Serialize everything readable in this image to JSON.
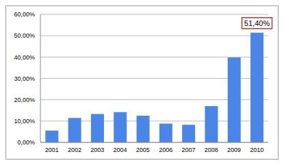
{
  "chart_data": {
    "type": "bar",
    "categories": [
      "2001",
      "2002",
      "2003",
      "2004",
      "2005",
      "2006",
      "2007",
      "2008",
      "2009",
      "2010"
    ],
    "values": [
      5.5,
      11.5,
      13.3,
      14.2,
      12.5,
      8.8,
      8.3,
      17.0,
      39.8,
      51.4
    ],
    "value_labels": [
      null,
      null,
      null,
      null,
      null,
      null,
      null,
      null,
      null,
      "51,40%"
    ],
    "data_labels": true,
    "color": "#4a86e8",
    "ylim": [
      0,
      60
    ],
    "yticks": [
      {
        "value": 0,
        "label": "0,00%"
      },
      {
        "value": 10,
        "label": "10,00%"
      },
      {
        "value": 20,
        "label": "20,00%"
      },
      {
        "value": 30,
        "label": "30,00%"
      },
      {
        "value": 40,
        "label": "40,00%"
      },
      {
        "value": 50,
        "label": "50,00%"
      },
      {
        "value": 60,
        "label": "60,00%"
      }
    ],
    "grid": true
  }
}
